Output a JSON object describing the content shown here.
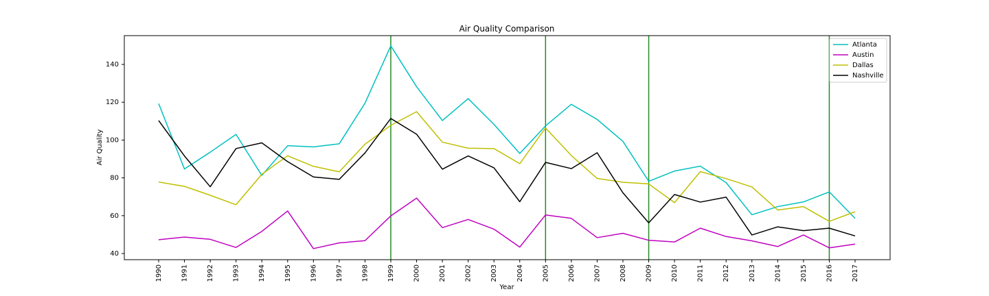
{
  "chart_data": {
    "type": "line",
    "title": "Air Quality Comparison",
    "xlabel": "Year",
    "ylabel": "Air Quality",
    "x": [
      1990,
      1991,
      1992,
      1993,
      1994,
      1995,
      1996,
      1997,
      1998,
      1999,
      2000,
      2001,
      2002,
      2003,
      2004,
      2005,
      2006,
      2007,
      2008,
      2009,
      2010,
      2011,
      2012,
      2013,
      2014,
      2015,
      2016,
      2017
    ],
    "xticks": [
      "1990",
      "1991",
      "1992",
      "1993",
      "1994",
      "1995",
      "1996",
      "1997",
      "1998",
      "1999",
      "2000",
      "2001",
      "2002",
      "2003",
      "2004",
      "2005",
      "2006",
      "2007",
      "2008",
      "2009",
      "2010",
      "2011",
      "2012",
      "2013",
      "2014",
      "2015",
      "2016",
      "2017"
    ],
    "yticks": [
      40,
      60,
      80,
      100,
      120,
      140
    ],
    "ylim": [
      37.5,
      154.5
    ],
    "grid": false,
    "legend_position": "top-right",
    "series": [
      {
        "name": "Atlanta",
        "color": "#00bfbf",
        "values": [
          119.3,
          84.7,
          93.6,
          103.0,
          81.3,
          97.0,
          96.4,
          98.0,
          119.5,
          149.8,
          128.2,
          110.3,
          121.9,
          108.3,
          92.9,
          107.5,
          118.9,
          110.9,
          99.3,
          78.2,
          83.6,
          86.2,
          77.5,
          60.5,
          64.8,
          67.3,
          72.6,
          58.6
        ]
      },
      {
        "name": "Austin",
        "color": "#bf00bf",
        "values": [
          47.3,
          48.7,
          47.5,
          43.2,
          51.7,
          62.5,
          42.6,
          45.6,
          46.8,
          59.9,
          69.3,
          53.7,
          58.0,
          52.9,
          43.4,
          60.4,
          58.6,
          48.4,
          50.7,
          47.0,
          46.1,
          53.4,
          49.0,
          46.7,
          43.7,
          49.8,
          43.0,
          45.0
        ]
      },
      {
        "name": "Dallas",
        "color": "#bfbf00",
        "values": [
          77.8,
          75.5,
          70.8,
          65.8,
          81.9,
          91.7,
          86.1,
          83.2,
          97.8,
          107.8,
          115.0,
          98.9,
          95.7,
          95.5,
          87.5,
          106.4,
          91.8,
          79.7,
          77.7,
          76.8,
          66.9,
          83.3,
          79.6,
          75.2,
          63.0,
          64.8,
          57.0,
          62.1
        ]
      },
      {
        "name": "Nashville",
        "color": "#000000",
        "values": [
          110.3,
          91.6,
          75.3,
          95.5,
          98.5,
          88.6,
          80.5,
          79.2,
          93.2,
          111.4,
          103.1,
          84.6,
          91.6,
          85.3,
          67.4,
          88.2,
          84.9,
          93.3,
          72.1,
          56.2,
          71.2,
          67.2,
          69.8,
          49.8,
          54.1,
          52.1,
          53.4,
          49.3
        ]
      }
    ],
    "vlines": {
      "color": "#228b22",
      "x": [
        1999,
        2005,
        2009,
        2016
      ]
    }
  }
}
